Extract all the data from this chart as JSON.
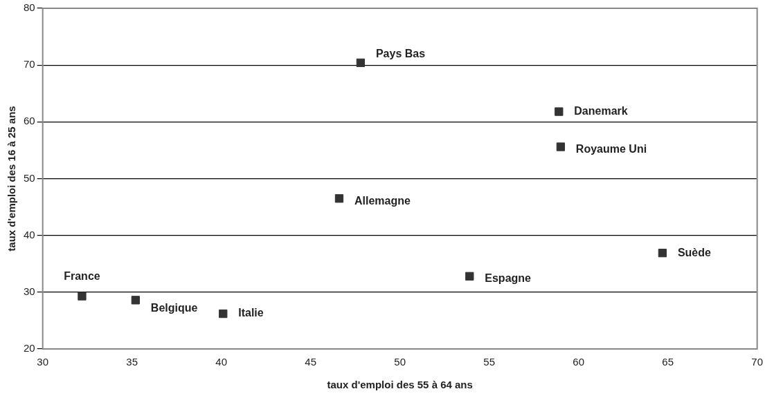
{
  "chart_data": {
    "type": "scatter",
    "xlabel": "taux d'emploi des 55 à 64 ans",
    "ylabel": "taux d'emploi des 16 à 25 ans",
    "x": [
      32.2,
      35.2,
      40.1,
      46.6,
      47.8,
      53.9,
      58.9,
      59.0,
      64.7
    ],
    "series": [
      {
        "color": "#333333",
        "values": [
          29.3,
          28.6,
          26.2,
          46.5,
          70.4,
          32.8,
          61.8,
          55.6,
          36.9
        ]
      }
    ],
    "annotations": [
      {
        "text": "France",
        "x": 32.2,
        "y": 29.3
      },
      {
        "text": "Belgique",
        "x": 35.2,
        "y": 28.6
      },
      {
        "text": "Italie",
        "x": 40.1,
        "y": 26.2
      },
      {
        "text": "Allemagne",
        "x": 46.6,
        "y": 46.5
      },
      {
        "text": "Pays Bas",
        "x": 47.8,
        "y": 70.4
      },
      {
        "text": "Espagne",
        "x": 53.9,
        "y": 32.8
      },
      {
        "text": "Danemark",
        "x": 58.9,
        "y": 61.8
      },
      {
        "text": "Royaume Uni",
        "x": 59.0,
        "y": 55.6
      },
      {
        "text": "Suède",
        "x": 64.7,
        "y": 36.9
      }
    ],
    "xlim": [
      30,
      70
    ],
    "xticks": [
      30,
      35,
      40,
      45,
      50,
      55,
      60,
      65,
      70
    ],
    "ylim": [
      20,
      80
    ],
    "yticks": [
      20,
      30,
      40,
      50,
      60,
      70,
      80
    ],
    "grid": "y",
    "legend": false,
    "marker": "square"
  }
}
